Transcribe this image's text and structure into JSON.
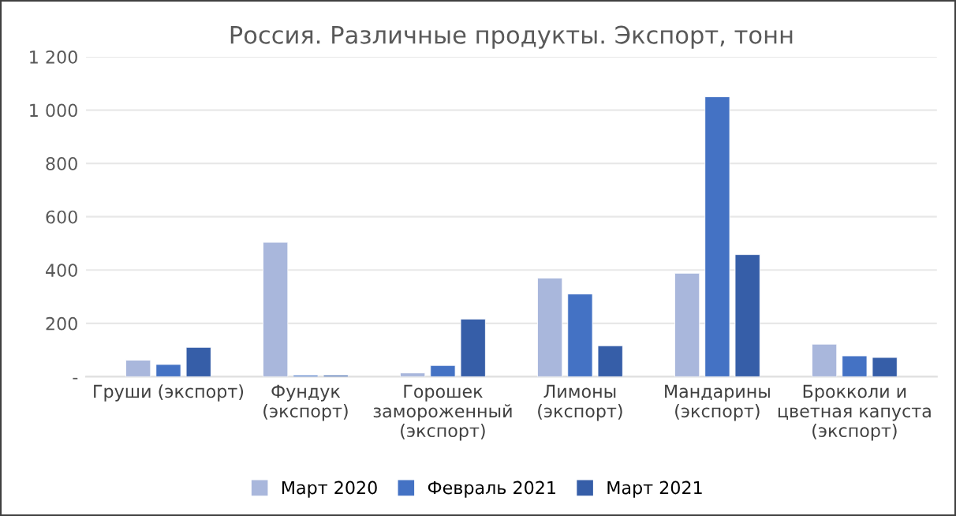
{
  "chart_data": {
    "type": "bar",
    "title": "Россия. Различные продукты. Экспорт, тонн",
    "categories": [
      "Груши (экспорт)",
      "Фундук\n(экспорт)",
      "Горошек\nзамороженный\n(экспорт)",
      "Лимоны\n(экспорт)",
      "Мандарины\n(экспорт)",
      "Брокколи и\nцветная капуста\n(экспорт)"
    ],
    "series": [
      {
        "name": "Март 2020",
        "color": "#a9b7dc",
        "values": [
          62,
          504,
          14,
          370,
          388,
          122
        ]
      },
      {
        "name": "Февраль 2021",
        "color": "#4472c4",
        "values": [
          46,
          6,
          42,
          310,
          1050,
          78
        ]
      },
      {
        "name": "Март 2021",
        "color": "#365ea8",
        "values": [
          110,
          6,
          216,
          116,
          458,
          72
        ]
      }
    ],
    "ylim": [
      0,
      1200
    ],
    "yticks": [
      {
        "value": 0,
        "label": "-"
      },
      200,
      400,
      600,
      800,
      {
        "value": 1000,
        "label": "1 000"
      },
      {
        "value": 1200,
        "label": "1 200"
      }
    ],
    "grid": "y",
    "legend": "bottom"
  }
}
